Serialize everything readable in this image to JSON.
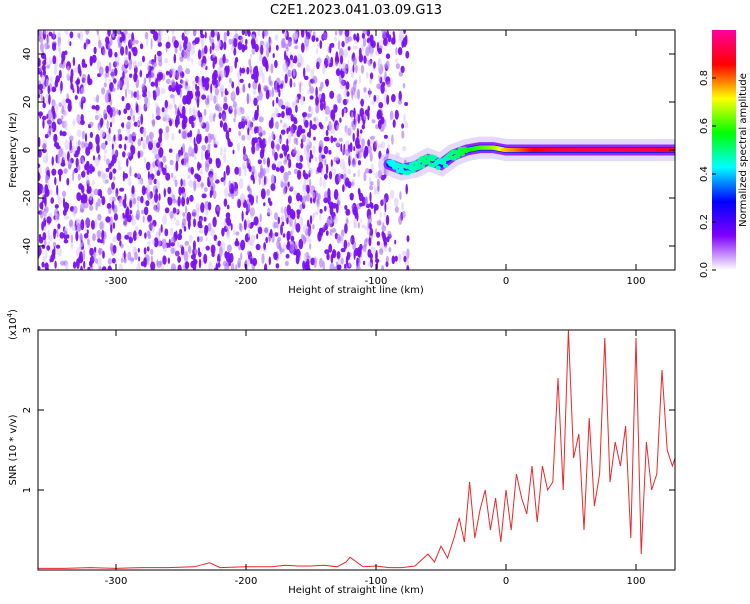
{
  "title": "C2E1.2023.041.03.09.G13",
  "chart_data": [
    {
      "type": "heatmap",
      "xlabel": "Height of straight line (km)",
      "ylabel": "Frequency (Hz)",
      "xlim": [
        -360,
        130
      ],
      "ylim": [
        -50,
        50
      ],
      "x_ticks": [
        -300,
        -200,
        -100,
        0,
        100
      ],
      "x_tick_labels": [
        "-300",
        "-200",
        "-100",
        "0",
        "100"
      ],
      "y_ticks": [
        -40,
        -20,
        0,
        20,
        40
      ],
      "y_tick_labels": [
        "-40",
        "-20",
        "0",
        "20",
        "40"
      ],
      "noise_region": {
        "x_from": -360,
        "x_to": -75,
        "freq_from": -50,
        "freq_to": 50,
        "amplitude": 0.15
      },
      "signal_track": [
        {
          "x": -90,
          "freq": -6,
          "amplitude": 0.42
        },
        {
          "x": -80,
          "freq": -8,
          "amplitude": 0.45
        },
        {
          "x": -70,
          "freq": -7,
          "amplitude": 0.47
        },
        {
          "x": -60,
          "freq": -4,
          "amplitude": 0.5
        },
        {
          "x": -50,
          "freq": -6,
          "amplitude": 0.45
        },
        {
          "x": -40,
          "freq": -2,
          "amplitude": 0.5
        },
        {
          "x": -30,
          "freq": 0,
          "amplitude": 0.55
        },
        {
          "x": -20,
          "freq": 1,
          "amplitude": 0.6
        },
        {
          "x": -10,
          "freq": 1,
          "amplitude": 0.65
        },
        {
          "x": 0,
          "freq": 0,
          "amplitude": 0.75
        },
        {
          "x": 20,
          "freq": 0,
          "amplitude": 0.85
        },
        {
          "x": 40,
          "freq": 0,
          "amplitude": 0.9
        },
        {
          "x": 60,
          "freq": 0,
          "amplitude": 0.92
        },
        {
          "x": 80,
          "freq": 0,
          "amplitude": 0.93
        },
        {
          "x": 100,
          "freq": 0,
          "amplitude": 0.92
        },
        {
          "x": 120,
          "freq": 0,
          "amplitude": 0.9
        },
        {
          "x": 130,
          "freq": 0,
          "amplitude": 0.9
        }
      ],
      "colorbar": {
        "label": "Normalized spectral amplitude",
        "range": [
          0,
          1
        ],
        "ticks": [
          0.0,
          0.2,
          0.4,
          0.6,
          0.8
        ],
        "tick_labels": [
          "0.0",
          "0.2",
          "0.4",
          "0.6",
          "0.8"
        ],
        "colormap": [
          "#ffffff",
          "#8000ff",
          "#0000ff",
          "#00ffff",
          "#00ff00",
          "#ffff00",
          "#ff0000",
          "#ff00a0"
        ]
      }
    },
    {
      "type": "line",
      "xlabel": "Height of straight line (km)",
      "ylabel": "SNR (10 * v/v)",
      "y_multiplier_label": "(x10",
      "y_multiplier_exp": "4",
      "y_multiplier_close": ")",
      "xlim": [
        -360,
        130
      ],
      "ylim": [
        0,
        3
      ],
      "x_ticks": [
        -300,
        -200,
        -100,
        0,
        100
      ],
      "x_tick_labels": [
        "-300",
        "-200",
        "-100",
        "0",
        "100"
      ],
      "y_ticks": [
        1,
        2,
        3
      ],
      "y_tick_labels": [
        "1",
        "2",
        "3"
      ],
      "line_color": "#e8282a",
      "series": [
        {
          "x": [
            -360,
            -340,
            -320,
            -300,
            -280,
            -260,
            -240,
            -228,
            -220,
            -200,
            -180,
            -170,
            -160,
            -150,
            -140,
            -130,
            -123,
            -120,
            -110,
            -100,
            -90,
            -80,
            -70,
            -60,
            -55,
            -50,
            -45,
            -40,
            -36,
            -32,
            -28,
            -24,
            -20,
            -16,
            -12,
            -8,
            -4,
            0,
            4,
            8,
            12,
            16,
            20,
            24,
            28,
            32,
            36,
            40,
            44,
            48,
            52,
            56,
            60,
            64,
            68,
            72,
            76,
            80,
            84,
            88,
            92,
            96,
            100,
            104,
            108,
            112,
            116,
            120,
            124,
            128,
            130
          ],
          "y": [
            0.02,
            0.02,
            0.03,
            0.02,
            0.03,
            0.03,
            0.04,
            0.09,
            0.03,
            0.04,
            0.04,
            0.06,
            0.05,
            0.05,
            0.06,
            0.04,
            0.1,
            0.16,
            0.04,
            0.05,
            0.03,
            0.03,
            0.05,
            0.2,
            0.1,
            0.3,
            0.15,
            0.4,
            0.65,
            0.35,
            1.1,
            0.4,
            0.75,
            1.0,
            0.5,
            0.9,
            0.35,
            1.0,
            0.5,
            1.2,
            0.9,
            0.7,
            1.3,
            0.6,
            1.3,
            1.0,
            1.1,
            2.4,
            1.0,
            3.0,
            1.4,
            1.7,
            0.5,
            1.9,
            0.8,
            1.2,
            2.9,
            1.1,
            1.6,
            1.3,
            1.8,
            0.4,
            2.9,
            0.2,
            1.6,
            1.0,
            1.2,
            2.5,
            1.5,
            1.3,
            1.4
          ]
        }
      ]
    }
  ]
}
